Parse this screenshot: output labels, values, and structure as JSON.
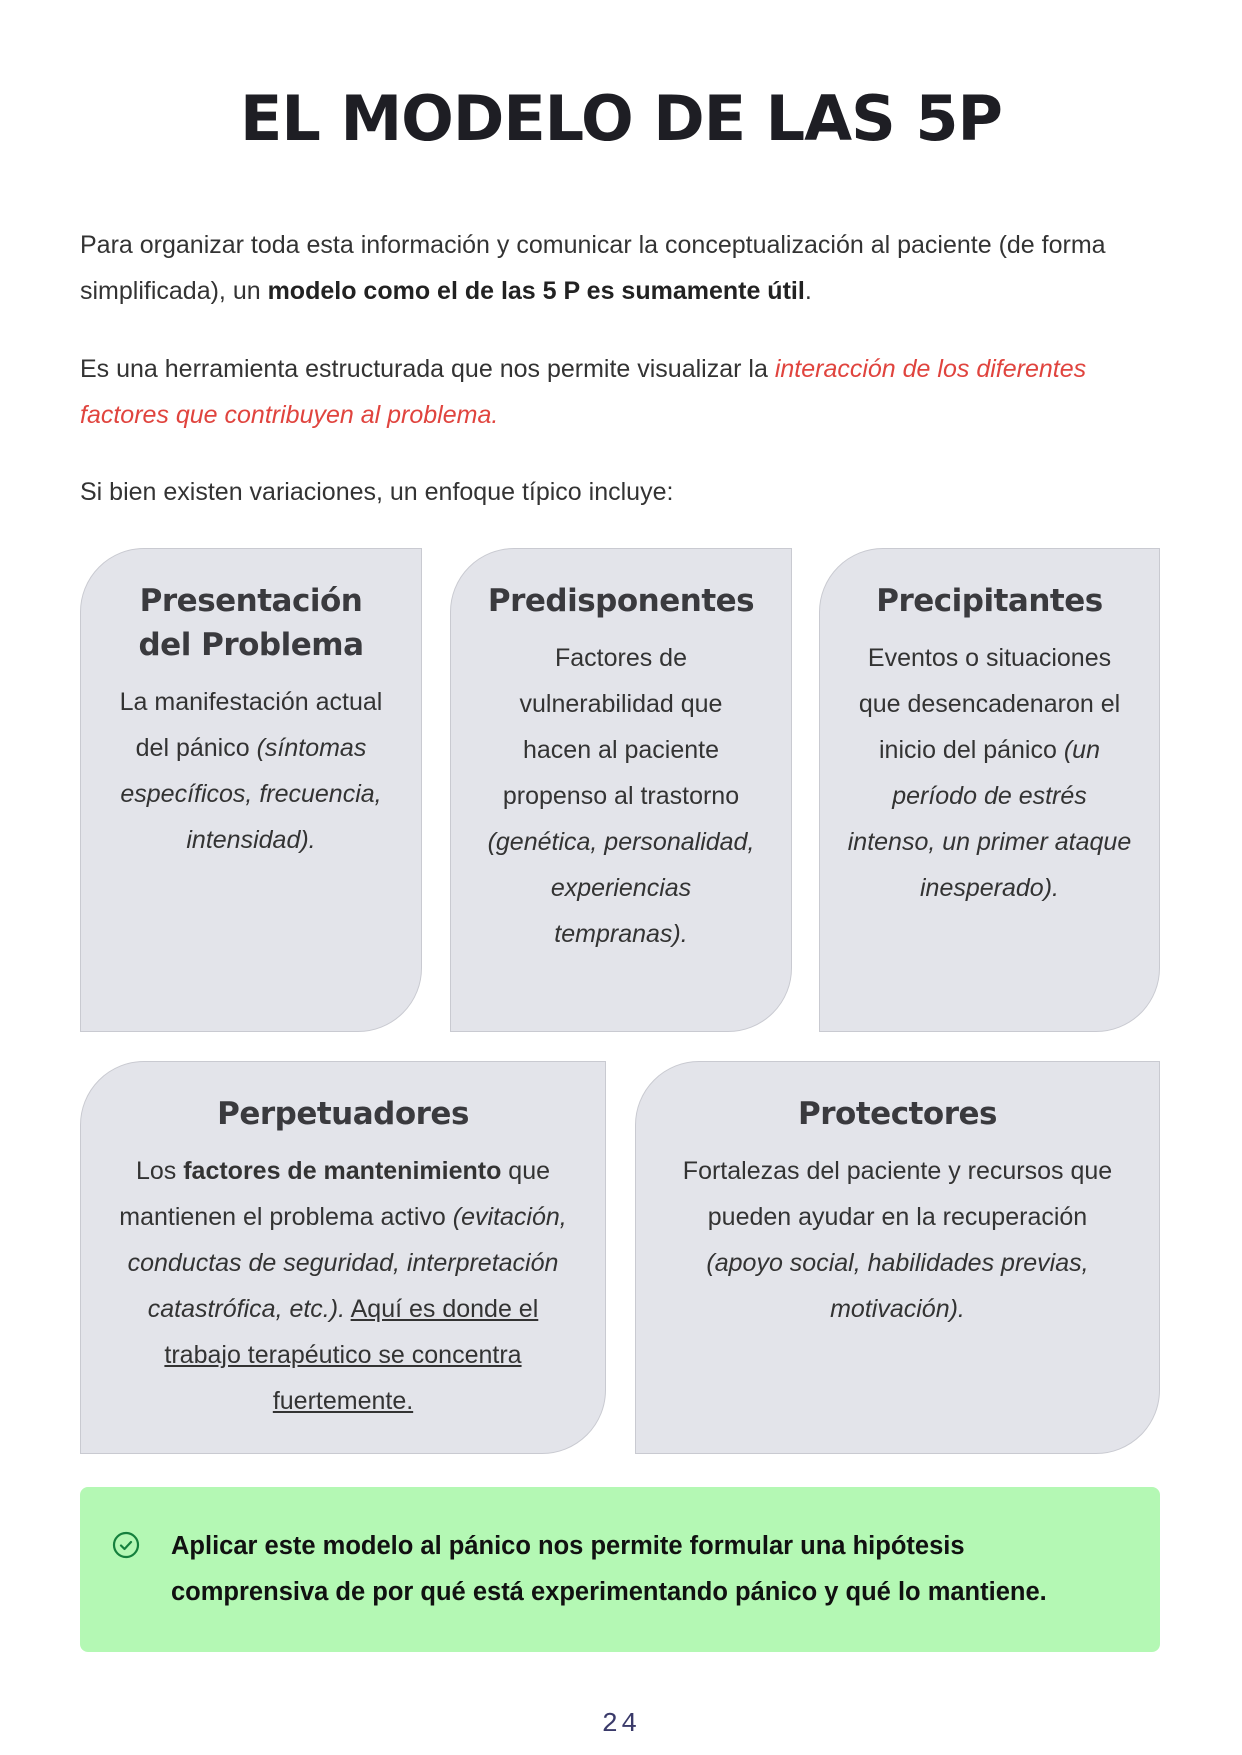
{
  "title": "EL MODELO DE LAS 5P",
  "intro": {
    "p1_a": "Para organizar toda esta información y comunicar la conceptualización al paciente (de forma simplificada), un ",
    "p1_bold": "modelo como el de las 5 P es sumamente útil",
    "p1_end": ".",
    "p2_a": "Es una herramienta estructurada que nos permite visualizar la ",
    "p2_accent": "interacción de los diferentes factores que contribuyen al problema.",
    "p3": "Si bien existen variaciones, un enfoque típico incluye:"
  },
  "cards": [
    {
      "title": "Presentación del Problema",
      "text": "La manifestación actual del pánico ",
      "italic": "(síntomas específicos, frecuencia, intensidad)."
    },
    {
      "title": "Predisponentes",
      "text": "Factores de vulnerabilidad que hacen al paciente propenso al trastorno ",
      "italic": "(genética, personalidad, experiencias tempranas)."
    },
    {
      "title": "Precipitantes",
      "text": "Eventos o situaciones que desencadenaron el inicio del pánico ",
      "italic": "(un período de estrés intenso, un primer ataque inesperado)."
    },
    {
      "title": "Perpetuadores",
      "text_a": "Los ",
      "bold": "factores de mantenimiento",
      "text_b": " que mantienen el problema activo ",
      "italic": "(evitación, conductas de seguridad, interpretación catastrófica, etc.).",
      "underline": "Aquí es donde el trabajo terapéutico se concentra fuertemente."
    },
    {
      "title": "Protectores",
      "text": "Fortalezas del paciente y recursos que pueden ayudar en la recuperación ",
      "italic": "(apoyo social, habilidades previas, motivación)."
    }
  ],
  "callout": {
    "icon": "check-circle-icon",
    "text": "Aplicar este modelo al pánico nos permite formular una hipótesis comprensiva de por qué está experimentando pánico y qué lo mantiene.",
    "bg_color": "#b4f8b4"
  },
  "page_number": "24",
  "accent_color": "#e0443e"
}
